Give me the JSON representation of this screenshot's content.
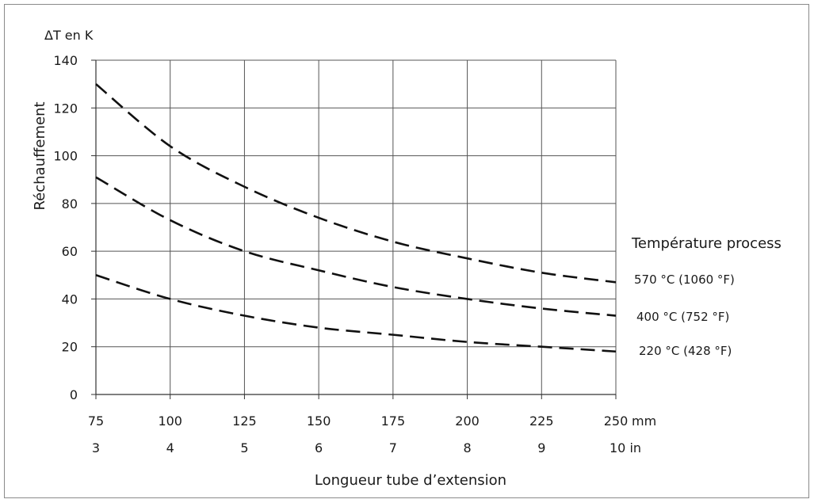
{
  "chart_data": {
    "type": "line",
    "ylabel": "Réchauffement",
    "yunit": "ΔT en K",
    "xlabel": "Longueur tube d’extension",
    "ylim": [
      0,
      140
    ],
    "xlim": [
      75,
      250
    ],
    "grid": true,
    "yticks": [
      "0",
      "20",
      "40",
      "60",
      "80",
      "100",
      "120",
      "140"
    ],
    "xticks_mm": [
      "75",
      "100",
      "125",
      "150",
      "175",
      "200",
      "225",
      "250"
    ],
    "xunit_mm": "mm",
    "xticks_in": [
      {
        "v": 3,
        "label": "3"
      },
      {
        "v": 4,
        "label": "4"
      },
      {
        "v": 5,
        "label": "5"
      },
      {
        "v": 6,
        "label": "6"
      },
      {
        "v": 7,
        "label": "7"
      },
      {
        "v": 8,
        "label": "8"
      },
      {
        "v": 9,
        "label": "9"
      },
      {
        "v": 10,
        "label": "10 in"
      }
    ],
    "legend_title": "Température process",
    "line_style": "dashed",
    "x": [
      75,
      100,
      125,
      150,
      175,
      200,
      225,
      250
    ],
    "series": [
      {
        "name": "570 °C (1060 °F)",
        "values": [
          130,
          104,
          87,
          74,
          64,
          57,
          51,
          47
        ]
      },
      {
        "name": "400 °C (752 °F)",
        "values": [
          91,
          73,
          60,
          52,
          45,
          40,
          36,
          33
        ]
      },
      {
        "name": "220 °C (428 °F)",
        "values": [
          50,
          40,
          33,
          28,
          25,
          22,
          20,
          18
        ]
      }
    ]
  }
}
